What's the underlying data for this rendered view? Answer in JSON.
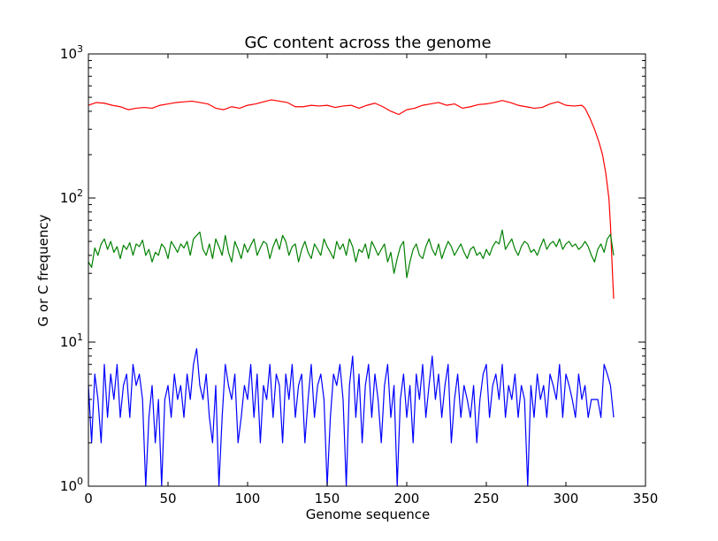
{
  "chart_data": {
    "type": "line",
    "title": "GC content across the genome",
    "xlabel": "Genome sequence",
    "ylabel": "G or C frequency",
    "xlim": [
      0,
      350
    ],
    "ylim": [
      1,
      1000
    ],
    "yscale": "log",
    "grid": false,
    "legend": "none",
    "xticks": [
      0,
      50,
      100,
      150,
      200,
      250,
      300,
      350
    ],
    "xtick_labels": [
      "0",
      "50",
      "100",
      "150",
      "200",
      "250",
      "300",
      "350"
    ],
    "yticks": [
      {
        "value": 1,
        "base": "10",
        "exp": "0"
      },
      {
        "value": 10,
        "base": "10",
        "exp": "1"
      },
      {
        "value": 100,
        "base": "10",
        "exp": "2"
      },
      {
        "value": 1000,
        "base": "10",
        "exp": "3"
      }
    ],
    "series": [
      {
        "color": "#ff0000",
        "x": [
          0,
          5,
          10,
          15,
          20,
          25,
          30,
          35,
          40,
          45,
          50,
          55,
          60,
          65,
          70,
          75,
          80,
          85,
          90,
          95,
          100,
          105,
          110,
          115,
          120,
          125,
          130,
          135,
          140,
          145,
          150,
          155,
          160,
          165,
          170,
          175,
          180,
          185,
          190,
          195,
          200,
          205,
          210,
          215,
          220,
          225,
          230,
          235,
          240,
          245,
          250,
          255,
          260,
          265,
          270,
          275,
          280,
          285,
          290,
          295,
          300,
          305,
          310,
          312,
          315,
          318,
          321,
          323,
          325,
          327,
          328,
          329,
          330
        ],
        "values": [
          440,
          460,
          455,
          440,
          430,
          410,
          420,
          425,
          420,
          440,
          450,
          460,
          465,
          470,
          460,
          450,
          420,
          410,
          430,
          420,
          440,
          450,
          465,
          480,
          470,
          460,
          430,
          430,
          440,
          435,
          440,
          425,
          435,
          440,
          420,
          440,
          455,
          430,
          400,
          380,
          410,
          420,
          440,
          450,
          460,
          440,
          450,
          420,
          430,
          445,
          450,
          460,
          475,
          460,
          440,
          430,
          420,
          425,
          450,
          465,
          440,
          435,
          440,
          420,
          360,
          300,
          240,
          200,
          150,
          100,
          65,
          35,
          20
        ]
      },
      {
        "color": "#008000",
        "x": [
          0,
          2,
          4,
          6,
          8,
          10,
          12,
          14,
          16,
          18,
          20,
          22,
          24,
          26,
          28,
          30,
          32,
          34,
          36,
          38,
          40,
          42,
          44,
          46,
          48,
          50,
          52,
          54,
          56,
          58,
          60,
          62,
          64,
          66,
          68,
          70,
          72,
          74,
          76,
          78,
          80,
          82,
          84,
          86,
          88,
          90,
          92,
          94,
          96,
          98,
          100,
          102,
          104,
          106,
          108,
          110,
          112,
          114,
          116,
          118,
          120,
          122,
          124,
          126,
          128,
          130,
          132,
          134,
          136,
          138,
          140,
          142,
          144,
          146,
          148,
          150,
          152,
          154,
          156,
          158,
          160,
          162,
          164,
          166,
          168,
          170,
          172,
          174,
          176,
          178,
          180,
          182,
          184,
          186,
          188,
          190,
          192,
          194,
          196,
          198,
          200,
          202,
          204,
          206,
          208,
          210,
          212,
          214,
          216,
          218,
          220,
          222,
          224,
          226,
          228,
          230,
          232,
          234,
          236,
          238,
          240,
          242,
          244,
          246,
          248,
          250,
          252,
          254,
          256,
          258,
          260,
          262,
          264,
          266,
          268,
          270,
          272,
          274,
          276,
          278,
          280,
          282,
          284,
          286,
          288,
          290,
          292,
          294,
          296,
          298,
          300,
          302,
          304,
          306,
          308,
          310,
          312,
          314,
          316,
          318,
          320,
          322,
          324,
          326,
          328,
          330
        ],
        "values": [
          36,
          33,
          45,
          40,
          48,
          52,
          44,
          50,
          42,
          46,
          38,
          47,
          44,
          49,
          40,
          48,
          46,
          51,
          40,
          44,
          36,
          42,
          40,
          48,
          45,
          38,
          50,
          46,
          42,
          48,
          45,
          50,
          40,
          52,
          55,
          58,
          44,
          40,
          48,
          38,
          52,
          46,
          40,
          55,
          42,
          36,
          50,
          44,
          38,
          48,
          42,
          47,
          52,
          40,
          45,
          50,
          48,
          38,
          46,
          52,
          44,
          55,
          50,
          40,
          46,
          48,
          36,
          44,
          50,
          42,
          38,
          48,
          44,
          40,
          52,
          46,
          42,
          38,
          50,
          44,
          48,
          40,
          52,
          46,
          36,
          44,
          42,
          48,
          38,
          50,
          45,
          40,
          44,
          48,
          36,
          42,
          30,
          38,
          46,
          50,
          28,
          36,
          44,
          48,
          40,
          38,
          46,
          52,
          44,
          40,
          48,
          38,
          44,
          50,
          46,
          40,
          44,
          48,
          42,
          38,
          44,
          46,
          40,
          42,
          38,
          44,
          40,
          46,
          50,
          48,
          60,
          44,
          48,
          52,
          44,
          40,
          46,
          50,
          48,
          42,
          44,
          40,
          46,
          52,
          44,
          48,
          50,
          46,
          52,
          44,
          48,
          50,
          46,
          48,
          44,
          46,
          50,
          46,
          40,
          36,
          44,
          48,
          42,
          52,
          56,
          40
        ]
      },
      {
        "color": "#0000ff",
        "x": [
          0,
          2,
          4,
          6,
          8,
          10,
          12,
          14,
          16,
          18,
          20,
          22,
          24,
          26,
          28,
          30,
          32,
          34,
          36,
          38,
          40,
          42,
          44,
          46,
          48,
          50,
          52,
          54,
          56,
          58,
          60,
          62,
          64,
          66,
          68,
          70,
          72,
          74,
          76,
          78,
          80,
          82,
          84,
          86,
          88,
          90,
          92,
          94,
          96,
          98,
          100,
          102,
          104,
          106,
          108,
          110,
          112,
          114,
          116,
          118,
          120,
          122,
          124,
          126,
          128,
          130,
          132,
          134,
          136,
          138,
          140,
          142,
          144,
          146,
          148,
          150,
          152,
          154,
          156,
          158,
          160,
          162,
          164,
          166,
          168,
          170,
          172,
          174,
          176,
          178,
          180,
          182,
          184,
          186,
          188,
          190,
          192,
          194,
          196,
          198,
          200,
          202,
          204,
          206,
          208,
          210,
          212,
          214,
          216,
          218,
          220,
          222,
          224,
          226,
          228,
          230,
          232,
          234,
          236,
          238,
          240,
          242,
          244,
          246,
          248,
          250,
          252,
          254,
          256,
          258,
          260,
          262,
          264,
          266,
          268,
          270,
          272,
          274,
          276,
          278,
          280,
          282,
          284,
          286,
          288,
          290,
          292,
          294,
          296,
          298,
          300,
          302,
          304,
          306,
          308,
          310,
          312,
          314,
          316,
          318,
          320,
          322,
          324,
          326,
          328,
          330
        ],
        "values": [
          5,
          2,
          6,
          4,
          2,
          7,
          3,
          6,
          4,
          7,
          3,
          5,
          6,
          3,
          7,
          5,
          6,
          4,
          1,
          3,
          5,
          2,
          4,
          1,
          4,
          5,
          3,
          6,
          4,
          5,
          3,
          6,
          4,
          7,
          9,
          5,
          4,
          6,
          3,
          2,
          5,
          1,
          3,
          7,
          5,
          4,
          6,
          2,
          3,
          5,
          4,
          7,
          3,
          6,
          2,
          5,
          4,
          7,
          3,
          6,
          5,
          2,
          6,
          4,
          7,
          3,
          5,
          6,
          2,
          4,
          7,
          3,
          5,
          6,
          4,
          1,
          3,
          6,
          5,
          7,
          4,
          1,
          5,
          8,
          3,
          6,
          2,
          5,
          7,
          3,
          6,
          4,
          2,
          5,
          7,
          3,
          5,
          1,
          4,
          6,
          3,
          5,
          2,
          6,
          4,
          7,
          3,
          5,
          8,
          4,
          6,
          3,
          5,
          7,
          2,
          4,
          6,
          3,
          5,
          4,
          3,
          5,
          2,
          4,
          6,
          7,
          3,
          5,
          6,
          4,
          7,
          3,
          5,
          4,
          6,
          3,
          5,
          4,
          1,
          5,
          3,
          6,
          4,
          5,
          3,
          6,
          5,
          4,
          7,
          3,
          6,
          5,
          4,
          3,
          6,
          4,
          5,
          3,
          4,
          4,
          4,
          3,
          7,
          6,
          5,
          3
        ]
      }
    ]
  }
}
